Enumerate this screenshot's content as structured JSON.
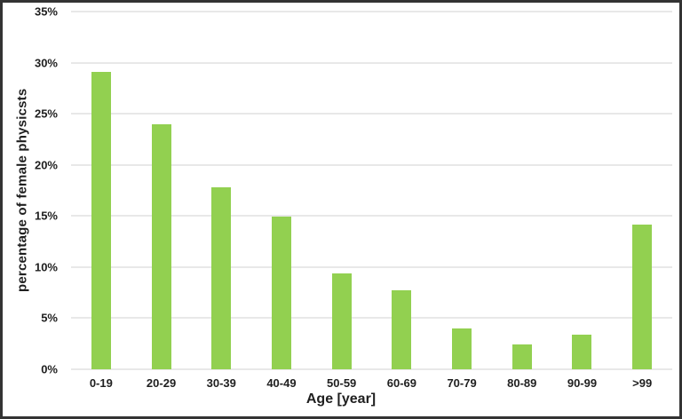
{
  "window": {
    "background": "#ffffff",
    "border_color": "#333333"
  },
  "chart_data": {
    "type": "bar",
    "title": "",
    "xlabel": "Age [year]",
    "ylabel": "percentage of female physicsts",
    "categories": [
      "0-19",
      "20-29",
      "30-39",
      "40-49",
      "50-59",
      "60-69",
      "70-79",
      "80-89",
      "90-99",
      ">99"
    ],
    "values": [
      29.1,
      24.0,
      17.8,
      14.9,
      9.4,
      7.7,
      4.0,
      2.4,
      3.4,
      14.2
    ],
    "ylim": [
      0,
      35
    ],
    "ytick_step": 5,
    "ytick_labels": [
      "0%",
      "5%",
      "10%",
      "15%",
      "20%",
      "25%",
      "30%",
      "35%"
    ],
    "grid": true,
    "legend": "none",
    "colors": {
      "bar": "#92D050",
      "gridline": "#e8e8e8",
      "text": "#1f1f1f"
    }
  }
}
